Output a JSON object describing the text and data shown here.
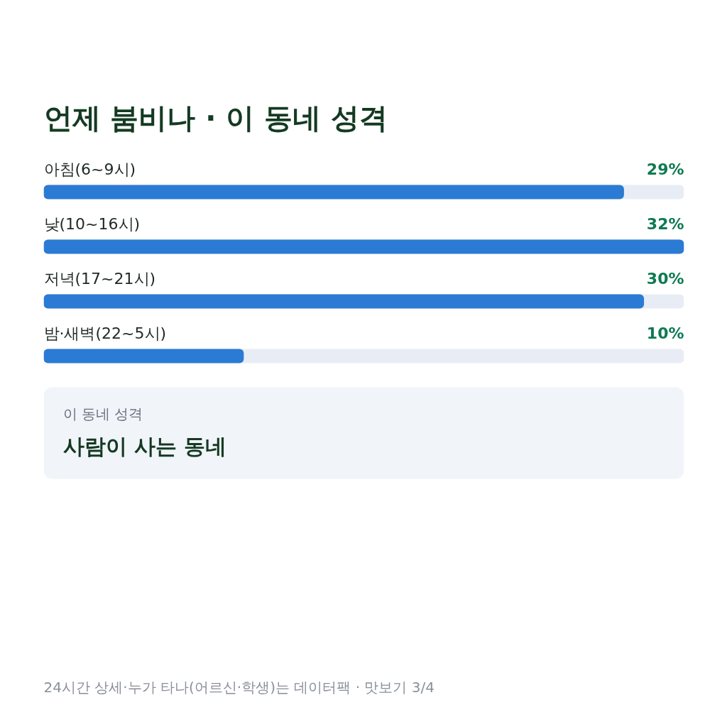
{
  "chart_data": {
    "type": "bar",
    "orientation": "horizontal",
    "title": "언제 붐비나 · 이 동네 성격",
    "categories": [
      "아침(6~9시)",
      "낮(10~16시)",
      "저녁(17~21시)",
      "밤·새벽(22~5시)"
    ],
    "values": [
      29,
      32,
      30,
      10
    ],
    "value_labels": [
      "29%",
      "32%",
      "30%",
      "10%"
    ],
    "color": "#2b7bd4",
    "tick_labels": false,
    "annotations": [
      "이 동네 성격",
      "사람이 사는 동네",
      "24시간 상세·누가 타나(어르신·학생)는 데이터팩 · 맛보기 3/4"
    ]
  }
}
